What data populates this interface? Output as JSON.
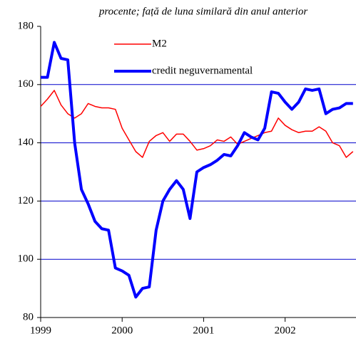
{
  "chart_data": {
    "type": "line",
    "title": "procente; față de luna similară din anul anterior",
    "x": [
      1999,
      1999.083,
      1999.167,
      1999.25,
      1999.333,
      1999.417,
      1999.5,
      1999.583,
      1999.667,
      1999.75,
      1999.833,
      1999.917,
      2000,
      2000.083,
      2000.167,
      2000.25,
      2000.333,
      2000.417,
      2000.5,
      2000.583,
      2000.667,
      2000.75,
      2000.833,
      2000.917,
      2001,
      2001.083,
      2001.167,
      2001.25,
      2001.333,
      2001.417,
      2001.5,
      2001.583,
      2001.667,
      2001.75,
      2001.833,
      2001.917,
      2002,
      2002.083,
      2002.167,
      2002.25,
      2002.333,
      2002.417,
      2002.5,
      2002.583,
      2002.667,
      2002.75,
      2002.833
    ],
    "series": [
      {
        "name": "M2",
        "color": "#ff0000",
        "width": 1.5,
        "values": [
          152.5,
          155,
          158,
          153,
          150,
          148.5,
          150,
          153.5,
          152.5,
          152,
          152,
          151.5,
          145,
          141,
          137,
          135,
          140.5,
          142.5,
          143.5,
          140.5,
          143,
          143,
          140.5,
          137.5,
          138,
          139,
          141,
          140.5,
          142,
          139.5,
          140.5,
          141.5,
          142.5,
          143.5,
          144,
          148.5,
          146,
          144.5,
          143.5,
          144,
          144,
          145.5,
          144,
          140,
          139,
          135,
          137
        ]
      },
      {
        "name": "credit neguvernamental",
        "color": "#0000ff",
        "width": 4,
        "values": [
          162.5,
          162.5,
          174.5,
          169,
          168.5,
          140,
          124,
          119,
          113,
          110.5,
          110,
          97,
          96,
          94.5,
          87,
          90,
          90.5,
          110,
          120,
          124,
          127,
          124,
          114,
          130,
          131.5,
          132.5,
          134,
          136,
          135.5,
          139,
          143.5,
          142,
          141,
          145,
          157.5,
          157,
          154,
          151.5,
          154,
          158.5,
          158,
          158.5,
          150,
          151.5,
          152,
          153.5,
          153.5
        ]
      }
    ],
    "xlim": [
      1999,
      2002.87
    ],
    "xticks": [
      1999,
      2000,
      2001,
      2002
    ],
    "ylim": [
      80,
      180
    ],
    "yticks": [
      80,
      100,
      120,
      140,
      160,
      180
    ],
    "grid": true
  }
}
